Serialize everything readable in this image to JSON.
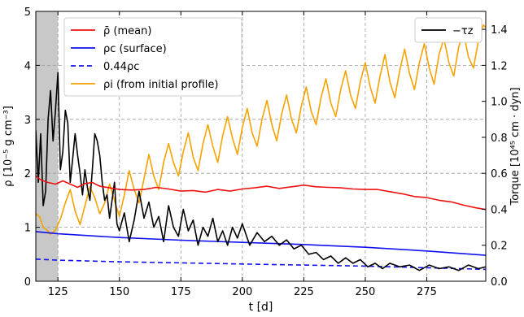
{
  "chart_data": {
    "type": "line",
    "xlabel": "t [d]",
    "ylabel_left": "ρ [10⁻⁵ g cm⁻³]",
    "ylabel_right": "Torque [10⁴⁵ cm · dyn]",
    "xlim": [
      116,
      299
    ],
    "ylim_left": [
      0,
      5
    ],
    "ylim_right": [
      0,
      1.5
    ],
    "x_ticks": [
      125,
      150,
      175,
      200,
      225,
      250,
      275
    ],
    "y_ticks_left": [
      0,
      1,
      2,
      3,
      4,
      5
    ],
    "y_ticks_right": [
      0.0,
      0.2,
      0.4,
      0.6,
      0.8,
      1.0,
      1.2,
      1.4
    ],
    "grid": true,
    "grid_style": "dashed",
    "shaded_region": [
      116,
      125
    ],
    "legend_left_position": "top-left",
    "legend_right_position": "top-right",
    "series": [
      {
        "name": "ρ̄ (mean)",
        "axis": "left",
        "color": "#ee1111",
        "style": "solid",
        "x": [
          116,
          118,
          121,
          124,
          127,
          130,
          133,
          136,
          139,
          142,
          146,
          150,
          155,
          160,
          165,
          170,
          175,
          180,
          185,
          190,
          195,
          200,
          205,
          210,
          215,
          220,
          225,
          230,
          235,
          240,
          245,
          250,
          255,
          260,
          265,
          270,
          275,
          280,
          285,
          290,
          295,
          299
        ],
        "y": [
          1.95,
          1.88,
          1.83,
          1.8,
          1.86,
          1.8,
          1.74,
          1.81,
          1.83,
          1.76,
          1.73,
          1.7,
          1.69,
          1.7,
          1.74,
          1.71,
          1.67,
          1.68,
          1.65,
          1.7,
          1.67,
          1.71,
          1.73,
          1.76,
          1.72,
          1.75,
          1.78,
          1.75,
          1.74,
          1.73,
          1.71,
          1.7,
          1.7,
          1.66,
          1.62,
          1.57,
          1.55,
          1.5,
          1.47,
          1.41,
          1.36,
          1.33
        ]
      },
      {
        "name": "ρc (surface)",
        "axis": "left",
        "color": "#1111ee",
        "style": "solid",
        "x": [
          116,
          125,
          150,
          175,
          200,
          225,
          250,
          275,
          299
        ],
        "y": [
          0.92,
          0.88,
          0.81,
          0.76,
          0.72,
          0.68,
          0.63,
          0.56,
          0.48
        ]
      },
      {
        "name": "0.44ρc",
        "axis": "left",
        "color": "#1111ee",
        "style": "dashed",
        "x": [
          116,
          125,
          150,
          175,
          200,
          225,
          250,
          275,
          299
        ],
        "y": [
          0.41,
          0.39,
          0.36,
          0.34,
          0.32,
          0.3,
          0.28,
          0.25,
          0.22
        ]
      },
      {
        "name": "ρi (from initial profile)",
        "axis": "left",
        "color": "#f5a300",
        "style": "solid",
        "x": [
          116,
          117.5,
          119,
          120.5,
          122,
          124,
          126,
          128,
          130,
          132,
          134,
          136,
          138,
          140,
          142,
          144,
          146,
          148,
          150,
          152,
          154,
          156,
          158,
          160,
          162,
          164,
          166,
          168,
          170,
          172,
          174,
          176,
          178,
          180,
          182,
          184,
          186,
          188,
          190,
          192,
          194,
          196,
          198,
          200,
          202,
          204,
          206,
          208,
          210,
          212,
          214,
          216,
          218,
          220,
          222,
          224,
          226,
          228,
          230,
          232,
          234,
          236,
          238,
          240,
          242,
          244,
          246,
          248,
          250,
          252,
          254,
          256,
          258,
          260,
          262,
          264,
          266,
          268,
          270,
          272,
          274,
          276,
          278,
          280,
          282,
          284,
          286,
          288,
          290,
          292,
          294,
          296,
          298,
          299
        ],
        "y": [
          1.25,
          1.2,
          1.0,
          0.95,
          0.87,
          0.95,
          1.15,
          1.45,
          1.7,
          1.3,
          1.05,
          1.4,
          1.75,
          1.55,
          1.25,
          1.45,
          1.8,
          1.5,
          1.2,
          1.6,
          2.05,
          1.7,
          1.45,
          1.9,
          2.35,
          1.95,
          1.7,
          2.2,
          2.55,
          2.2,
          1.95,
          2.4,
          2.75,
          2.3,
          2.05,
          2.55,
          2.9,
          2.5,
          2.2,
          2.7,
          3.05,
          2.65,
          2.35,
          2.85,
          3.2,
          2.75,
          2.5,
          3.0,
          3.35,
          2.9,
          2.6,
          3.1,
          3.45,
          3.0,
          2.75,
          3.25,
          3.6,
          3.15,
          2.9,
          3.4,
          3.75,
          3.3,
          3.05,
          3.55,
          3.9,
          3.45,
          3.2,
          3.7,
          4.05,
          3.6,
          3.3,
          3.8,
          4.2,
          3.7,
          3.4,
          3.9,
          4.3,
          3.85,
          3.55,
          4.05,
          4.4,
          3.95,
          3.65,
          4.2,
          4.5,
          4.05,
          3.8,
          4.35,
          4.6,
          4.15,
          3.95,
          4.45,
          4.75,
          4.7
        ]
      },
      {
        "name": "−τz",
        "axis": "right",
        "color": "#000000",
        "style": "solid",
        "x": [
          116,
          117,
          118,
          119,
          120,
          121,
          122,
          123,
          124,
          125,
          126,
          127,
          128,
          129,
          130,
          131,
          132,
          133,
          134,
          135,
          136,
          137,
          138,
          139,
          140,
          141,
          142,
          143,
          144,
          145,
          146,
          147,
          148,
          149,
          150,
          152,
          154,
          156,
          158,
          160,
          162,
          164,
          166,
          168,
          170,
          172,
          174,
          176,
          178,
          180,
          182,
          184,
          186,
          188,
          190,
          192,
          194,
          196,
          198,
          200,
          203,
          206,
          209,
          212,
          215,
          218,
          221,
          224,
          227,
          230,
          233,
          236,
          239,
          242,
          245,
          248,
          251,
          254,
          257,
          260,
          264,
          268,
          272,
          276,
          280,
          284,
          288,
          292,
          296,
          299
        ],
        "y": [
          0.84,
          0.55,
          0.82,
          0.42,
          0.5,
          0.9,
          1.06,
          0.78,
          0.95,
          1.16,
          0.62,
          0.72,
          0.95,
          0.88,
          0.55,
          0.68,
          0.82,
          0.7,
          0.6,
          0.48,
          0.62,
          0.52,
          0.45,
          0.62,
          0.82,
          0.78,
          0.7,
          0.55,
          0.45,
          0.48,
          0.35,
          0.45,
          0.55,
          0.32,
          0.28,
          0.38,
          0.22,
          0.34,
          0.5,
          0.35,
          0.44,
          0.3,
          0.36,
          0.22,
          0.42,
          0.3,
          0.25,
          0.4,
          0.28,
          0.34,
          0.2,
          0.3,
          0.25,
          0.35,
          0.22,
          0.28,
          0.2,
          0.3,
          0.24,
          0.32,
          0.2,
          0.27,
          0.22,
          0.25,
          0.2,
          0.23,
          0.18,
          0.2,
          0.15,
          0.16,
          0.12,
          0.14,
          0.1,
          0.13,
          0.1,
          0.12,
          0.08,
          0.1,
          0.07,
          0.1,
          0.08,
          0.09,
          0.06,
          0.09,
          0.07,
          0.08,
          0.06,
          0.09,
          0.07,
          0.08
        ]
      }
    ]
  }
}
